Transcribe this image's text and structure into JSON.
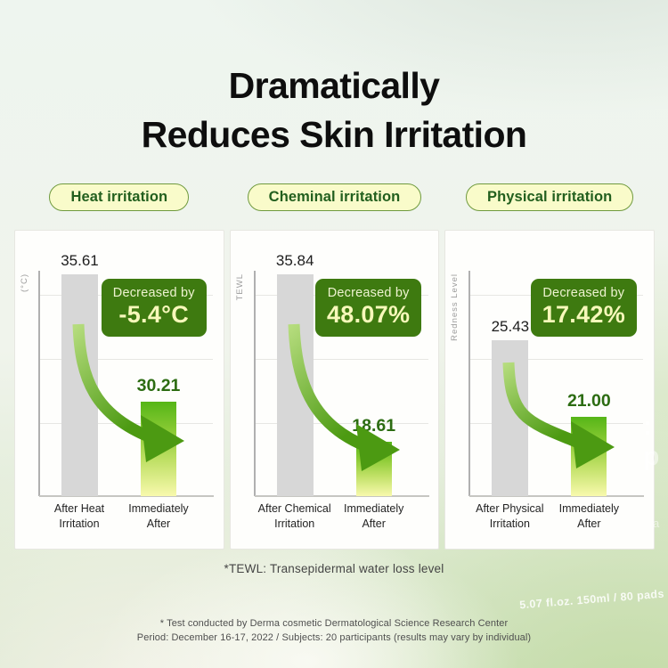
{
  "title": {
    "line1": "Dramatically",
    "line2": "Reduces Skin Irritation"
  },
  "pills": [
    {
      "label": "Heat irritation"
    },
    {
      "label": "Cheminal irritation"
    },
    {
      "label": "Physical irritation"
    }
  ],
  "chart_data": [
    {
      "type": "bar",
      "title": "Heat irritation",
      "ylabel": "(°C)",
      "categories": [
        "After Heat Irritation",
        "Immediately After"
      ],
      "values": [
        35.61,
        30.21
      ],
      "value_labels": [
        "35.61",
        "30.21"
      ],
      "cat_lines": [
        [
          "After Heat",
          "Irritation"
        ],
        [
          "Immediately",
          "After"
        ]
      ],
      "decrease_prefix": "Decreased by",
      "decrease_value": "-5.4°C",
      "grid": true,
      "legend": false
    },
    {
      "type": "bar",
      "title": "Cheminal irritation",
      "ylabel": "TEWL",
      "categories": [
        "After Chemical Irritation",
        "Immediately After"
      ],
      "values": [
        35.84,
        18.61
      ],
      "value_labels": [
        "35.84",
        "18.61"
      ],
      "cat_lines": [
        [
          "After Chemical",
          "Irritation"
        ],
        [
          "Immediately",
          "After"
        ]
      ],
      "decrease_prefix": "Decreased by",
      "decrease_value": "48.07%",
      "grid": true,
      "legend": false
    },
    {
      "type": "bar",
      "title": "Physical irritation",
      "ylabel": "Redness Level",
      "categories": [
        "After Physical Irritation",
        "Immediately After"
      ],
      "values": [
        25.43,
        21.0
      ],
      "value_labels": [
        "25.43",
        "21.00"
      ],
      "cat_lines": [
        [
          "After Physical",
          "Irritation"
        ],
        [
          "Immediately",
          "After"
        ]
      ],
      "decrease_prefix": "Decreased by",
      "decrease_value": "17.42%",
      "grid": true,
      "legend": false
    }
  ],
  "footer": {
    "tewl_note": "*TEWL: Transepidermal water loss level",
    "fine_print_1": "* Test conducted by Derma cosmetic Dermatological Science Research Center",
    "fine_print_2": "Period: December 16-17, 2022 / Subjects: 20 participants (results may vary by individual)"
  },
  "background": {
    "product_text": "5.07 fl.oz. 150ml / 80 pads",
    "fragment_1": ": p",
    "fragment_2": "a"
  },
  "colors": {
    "badge-green": "#3e7a10",
    "badge-text": "#eef3d0",
    "badge-value": "#f7f8ba",
    "bar-gray": "#d7d7d7",
    "bar-green-top": "#55b517",
    "bar-green-mid": "#bfe065",
    "bar-green-bottom": "#f8f9ad",
    "green-value": "#2c6c12",
    "pill-bg": "#f9fbca",
    "pill-border": "#6f9a3e",
    "pill-text": "#225f1e",
    "arrow-dark": "#4c9a12",
    "arrow-light": "#b5dc7d"
  }
}
